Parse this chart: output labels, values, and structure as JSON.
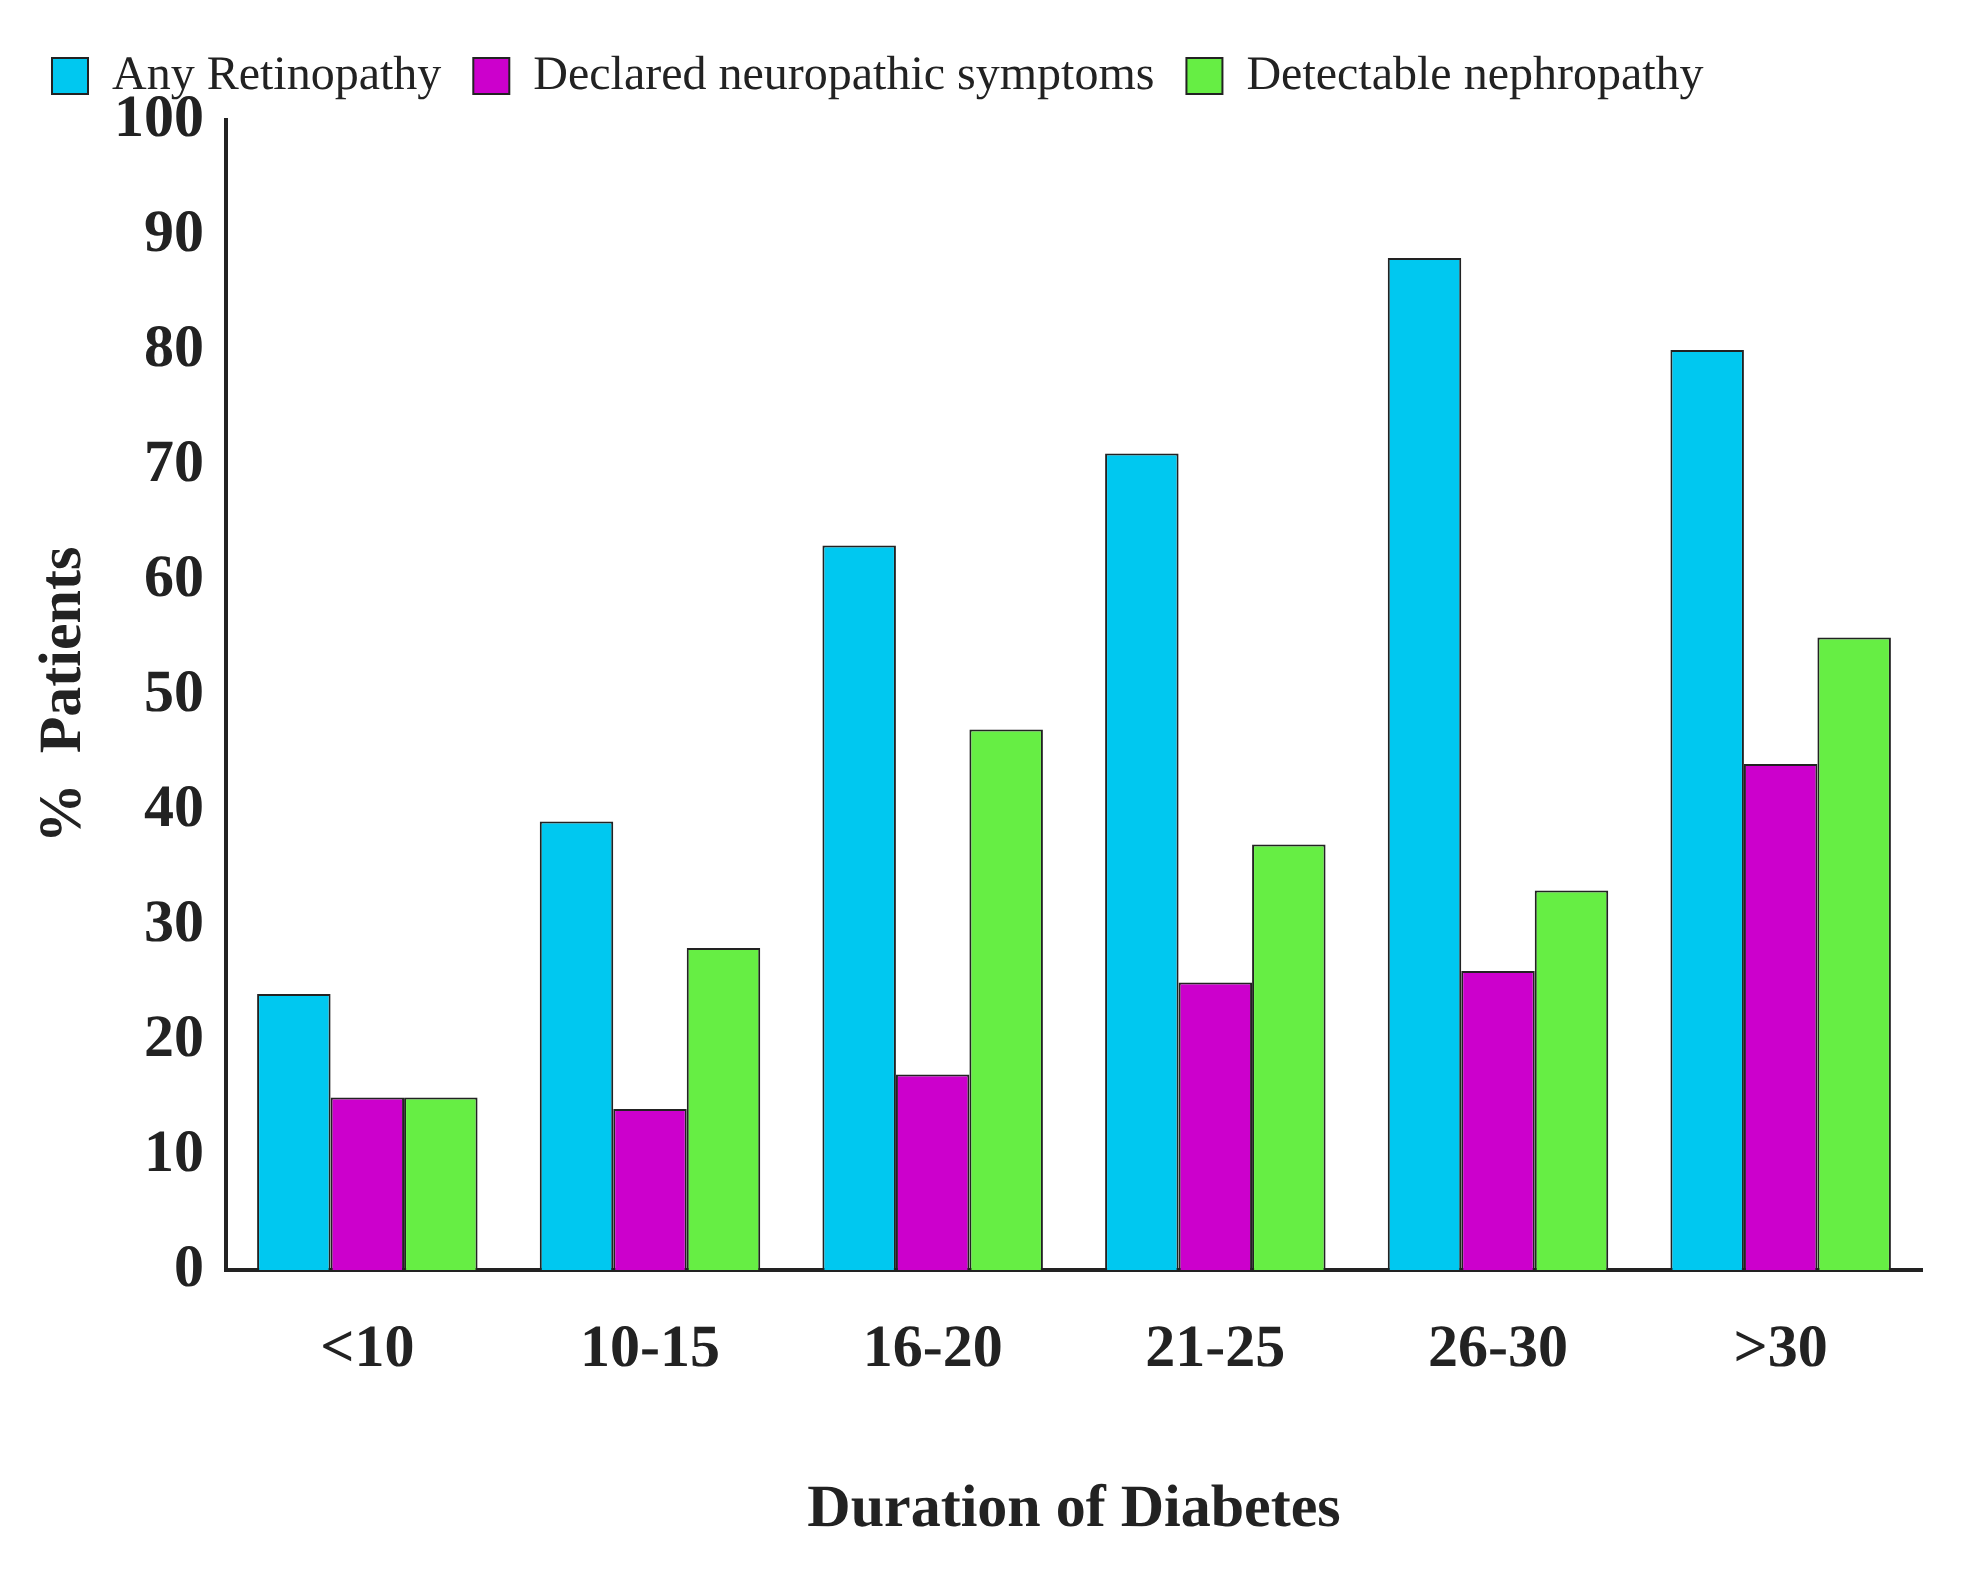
{
  "chart_data": {
    "type": "bar",
    "xlabel": "Duration of Diabetes",
    "ylabel": "%  Patients",
    "categories": [
      "<10",
      "10-15",
      "16-20",
      "21-25",
      "26-30",
      ">30"
    ],
    "series": [
      {
        "name": "Any Retinopathy",
        "color": "#00c8f0",
        "values": [
          24,
          39,
          63,
          71,
          88,
          80
        ]
      },
      {
        "name": "Declared neuropathic symptoms",
        "color": "#cc00cc",
        "values": [
          15,
          14,
          17,
          25,
          26,
          44
        ]
      },
      {
        "name": "Detectable nephropathy",
        "color": "#66ee44",
        "values": [
          15,
          28,
          47,
          37,
          33,
          55
        ]
      }
    ],
    "ylim": [
      0,
      100
    ],
    "yticks": [
      0,
      10,
      20,
      30,
      40,
      50,
      60,
      70,
      80,
      90,
      100
    ],
    "grid": false,
    "legend": "top left"
  }
}
